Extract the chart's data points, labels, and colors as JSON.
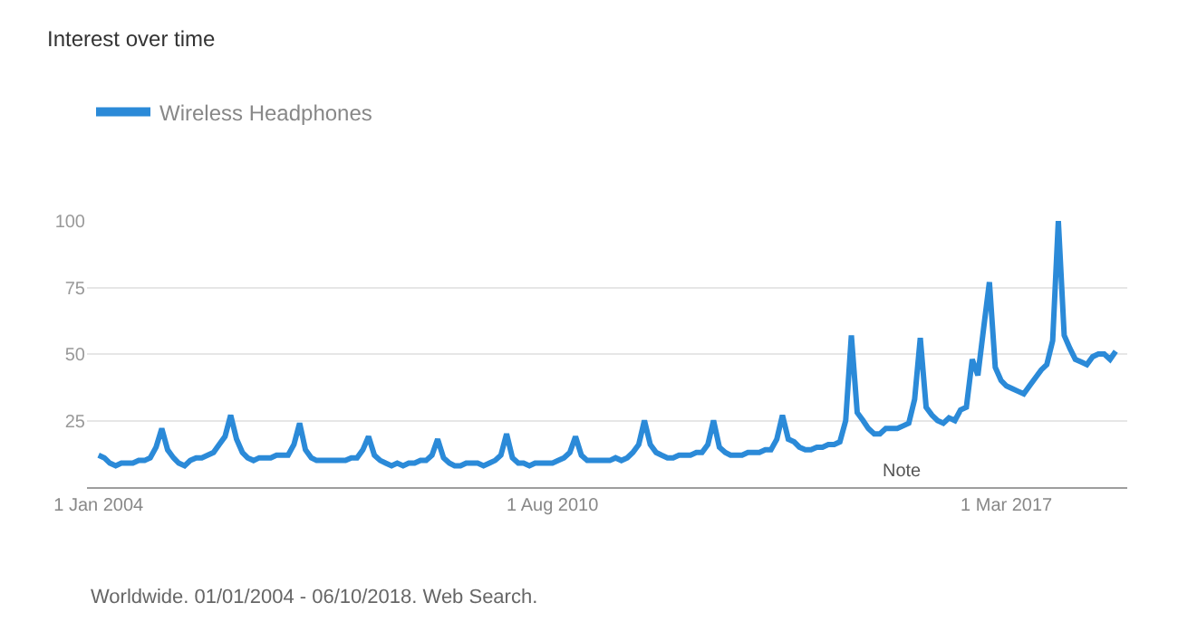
{
  "chart_data": {
    "type": "line",
    "title": "Interest over time",
    "x": [
      "2004-01",
      "2004-02",
      "2004-03",
      "2004-04",
      "2004-05",
      "2004-06",
      "2004-07",
      "2004-08",
      "2004-09",
      "2004-10",
      "2004-11",
      "2004-12",
      "2005-01",
      "2005-02",
      "2005-03",
      "2005-04",
      "2005-05",
      "2005-06",
      "2005-07",
      "2005-08",
      "2005-09",
      "2005-10",
      "2005-11",
      "2005-12",
      "2006-01",
      "2006-02",
      "2006-03",
      "2006-04",
      "2006-05",
      "2006-06",
      "2006-07",
      "2006-08",
      "2006-09",
      "2006-10",
      "2006-11",
      "2006-12",
      "2007-01",
      "2007-02",
      "2007-03",
      "2007-04",
      "2007-05",
      "2007-06",
      "2007-07",
      "2007-08",
      "2007-09",
      "2007-10",
      "2007-11",
      "2007-12",
      "2008-01",
      "2008-02",
      "2008-03",
      "2008-04",
      "2008-05",
      "2008-06",
      "2008-07",
      "2008-08",
      "2008-09",
      "2008-10",
      "2008-11",
      "2008-12",
      "2009-01",
      "2009-02",
      "2009-03",
      "2009-04",
      "2009-05",
      "2009-06",
      "2009-07",
      "2009-08",
      "2009-09",
      "2009-10",
      "2009-11",
      "2009-12",
      "2010-01",
      "2010-02",
      "2010-03",
      "2010-04",
      "2010-05",
      "2010-06",
      "2010-07",
      "2010-08",
      "2010-09",
      "2010-10",
      "2010-11",
      "2010-12",
      "2011-01",
      "2011-02",
      "2011-03",
      "2011-04",
      "2011-05",
      "2011-06",
      "2011-07",
      "2011-08",
      "2011-09",
      "2011-10",
      "2011-11",
      "2011-12",
      "2012-01",
      "2012-02",
      "2012-03",
      "2012-04",
      "2012-05",
      "2012-06",
      "2012-07",
      "2012-08",
      "2012-09",
      "2012-10",
      "2012-11",
      "2012-12",
      "2013-01",
      "2013-02",
      "2013-03",
      "2013-04",
      "2013-05",
      "2013-06",
      "2013-07",
      "2013-08",
      "2013-09",
      "2013-10",
      "2013-11",
      "2013-12",
      "2014-01",
      "2014-02",
      "2014-03",
      "2014-04",
      "2014-05",
      "2014-06",
      "2014-07",
      "2014-08",
      "2014-09",
      "2014-10",
      "2014-11",
      "2014-12",
      "2015-01",
      "2015-02",
      "2015-03",
      "2015-04",
      "2015-05",
      "2015-06",
      "2015-07",
      "2015-08",
      "2015-09",
      "2015-10",
      "2015-11",
      "2015-12",
      "2016-01",
      "2016-02",
      "2016-03",
      "2016-04",
      "2016-05",
      "2016-06",
      "2016-07",
      "2016-08",
      "2016-09",
      "2016-10",
      "2016-11",
      "2016-12",
      "2017-01",
      "2017-02",
      "2017-03",
      "2017-04",
      "2017-05",
      "2017-06",
      "2017-07",
      "2017-08",
      "2017-09",
      "2017-10",
      "2017-11",
      "2017-12",
      "2018-01",
      "2018-02",
      "2018-03",
      "2018-04",
      "2018-05",
      "2018-06",
      "2018-07",
      "2018-08",
      "2018-09",
      "2018-10"
    ],
    "series": [
      {
        "name": "Wireless Headphones",
        "color": "#2b8ad8",
        "values": [
          12,
          11,
          9,
          8,
          9,
          9,
          9,
          10,
          10,
          11,
          15,
          22,
          14,
          11,
          9,
          8,
          10,
          11,
          11,
          12,
          13,
          16,
          19,
          27,
          18,
          13,
          11,
          10,
          11,
          11,
          11,
          12,
          12,
          12,
          16,
          24,
          14,
          11,
          10,
          10,
          10,
          10,
          10,
          10,
          11,
          11,
          14,
          19,
          12,
          10,
          9,
          8,
          9,
          8,
          9,
          9,
          10,
          10,
          12,
          18,
          11,
          9,
          8,
          8,
          9,
          9,
          9,
          8,
          9,
          10,
          12,
          20,
          11,
          9,
          9,
          8,
          9,
          9,
          9,
          9,
          10,
          11,
          13,
          19,
          12,
          10,
          10,
          10,
          10,
          10,
          11,
          10,
          11,
          13,
          16,
          25,
          16,
          13,
          12,
          11,
          11,
          12,
          12,
          12,
          13,
          13,
          16,
          25,
          15,
          13,
          12,
          12,
          12,
          13,
          13,
          13,
          14,
          14,
          18,
          27,
          18,
          17,
          15,
          14,
          14,
          15,
          15,
          16,
          16,
          17,
          25,
          57,
          28,
          25,
          22,
          20,
          20,
          22,
          22,
          22,
          23,
          24,
          33,
          56,
          30,
          27,
          25,
          24,
          26,
          25,
          29,
          30,
          48,
          42,
          60,
          77,
          45,
          40,
          38,
          37,
          36,
          35,
          38,
          41,
          44,
          46,
          55,
          100,
          57,
          52,
          48,
          47,
          46,
          49,
          50,
          50,
          48,
          51
        ]
      }
    ],
    "xlim": [
      "2003-11-01",
      "2018-12-01"
    ],
    "xticks": [
      {
        "value": "2004-01-01",
        "label": "1 Jan 2004"
      },
      {
        "value": "2010-08-01",
        "label": "1 Aug 2010"
      },
      {
        "value": "2017-03-01",
        "label": "1 Mar 2017"
      }
    ],
    "ylim": [
      0,
      100
    ],
    "yticks": [
      25,
      50,
      75,
      100
    ],
    "grid": "y",
    "legend": "top left",
    "marker": "none",
    "line_style": "solid",
    "annotations": [
      "Note",
      "Worldwide. 01/01/2004 - 06/10/2018. Web Search."
    ]
  }
}
